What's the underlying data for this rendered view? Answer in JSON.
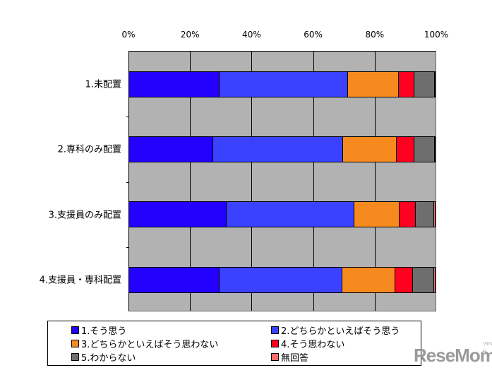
{
  "chart_data": {
    "type": "bar",
    "orientation": "horizontal",
    "stacked": "percent",
    "title": "",
    "xlabel": "",
    "ylabel": "",
    "xlim": [
      0,
      100
    ],
    "x_ticks": [
      "0%",
      "20%",
      "40%",
      "60%",
      "80%",
      "100%"
    ],
    "grid": true,
    "legend_position": "bottom",
    "categories": [
      "1.未配置",
      "2.専科のみ配置",
      "3.支援員のみ配置",
      "4.支援員・専科配置"
    ],
    "series": [
      {
        "name": "1.そう思う",
        "color": "#2400ff",
        "values": [
          29.4,
          27.5,
          31.7,
          29.4
        ]
      },
      {
        "name": "2.どちらかといえばそう思う",
        "color": "#3a42ff",
        "values": [
          42.0,
          42.4,
          41.7,
          40.1
        ]
      },
      {
        "name": "3.どちらかといえばそう思わない",
        "color": "#f78a1e",
        "values": [
          16.7,
          17.4,
          14.9,
          17.4
        ]
      },
      {
        "name": "4.そう思わない",
        "color": "#ff0020",
        "values": [
          5.0,
          5.7,
          5.3,
          5.7
        ]
      },
      {
        "name": "5.わからない",
        "color": "#6e6e6e",
        "values": [
          6.7,
          6.7,
          6.0,
          6.9
        ]
      },
      {
        "name": "無回答",
        "color": "#ff6a6a",
        "values": [
          0.2,
          0.3,
          0.4,
          0.5
        ]
      }
    ]
  },
  "axis": {
    "ticks": [
      {
        "label": "0%",
        "pct": 0
      },
      {
        "label": "20%",
        "pct": 20
      },
      {
        "label": "40%",
        "pct": 40
      },
      {
        "label": "60%",
        "pct": 60
      },
      {
        "label": "80%",
        "pct": 80
      },
      {
        "label": "100%",
        "pct": 100
      }
    ]
  },
  "legend": {
    "items": [
      {
        "label": "1.そう思う",
        "color": "#2400ff"
      },
      {
        "label": "2.どちらかといえばそう思う",
        "color": "#3a42ff"
      },
      {
        "label": "3.どちらかといえばそう思わない",
        "color": "#f78a1e"
      },
      {
        "label": "4.そう思わない",
        "color": "#ff0020"
      },
      {
        "label": "5.わからない",
        "color": "#6e6e6e"
      },
      {
        "label": "無回答",
        "color": "#ff6a6a"
      }
    ]
  },
  "watermark": {
    "text": "ReseMom",
    "kana": "リセマム"
  }
}
